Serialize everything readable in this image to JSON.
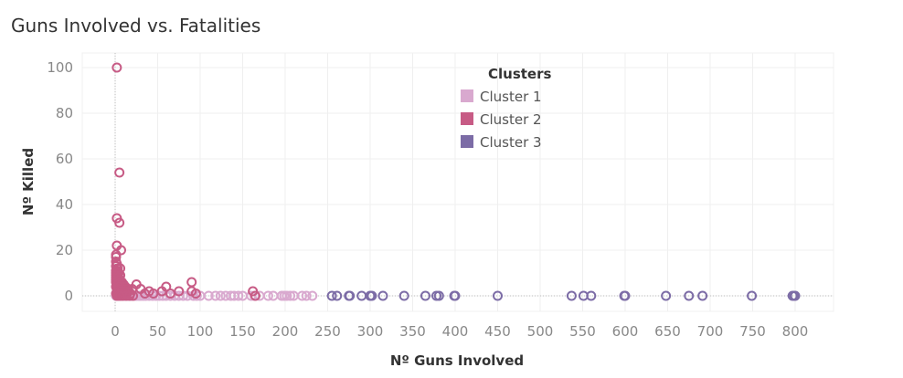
{
  "chart_data": {
    "type": "scatter",
    "title": "Guns Involved vs. Fatalities",
    "xlabel": "Nº Guns Involved",
    "ylabel": "Nº Killed",
    "xlim": [
      -20,
      840
    ],
    "ylim": [
      -7,
      102
    ],
    "x_ticks": [
      0,
      50,
      100,
      150,
      200,
      250,
      300,
      350,
      400,
      450,
      500,
      550,
      600,
      650,
      700,
      750,
      800
    ],
    "y_ticks": [
      0,
      20,
      40,
      60,
      80,
      100
    ],
    "grid": true,
    "legend": {
      "title": "Clusters",
      "position": "top-center"
    },
    "series": [
      {
        "name": "Cluster 1",
        "color": "#d9a9cf",
        "points": [
          [
            1,
            0
          ],
          [
            3,
            0
          ],
          [
            5,
            0
          ],
          [
            8,
            0
          ],
          [
            10,
            0
          ],
          [
            12,
            0
          ],
          [
            15,
            0
          ],
          [
            18,
            0
          ],
          [
            20,
            0
          ],
          [
            22,
            0
          ],
          [
            25,
            0
          ],
          [
            28,
            0
          ],
          [
            30,
            0
          ],
          [
            33,
            0
          ],
          [
            36,
            0
          ],
          [
            40,
            0
          ],
          [
            44,
            0
          ],
          [
            48,
            0
          ],
          [
            52,
            0
          ],
          [
            56,
            0
          ],
          [
            60,
            0
          ],
          [
            65,
            0
          ],
          [
            70,
            0
          ],
          [
            75,
            0
          ],
          [
            80,
            0
          ],
          [
            85,
            0
          ],
          [
            92,
            0
          ],
          [
            96,
            0
          ],
          [
            100,
            0
          ],
          [
            110,
            0
          ],
          [
            118,
            0
          ],
          [
            124,
            0
          ],
          [
            130,
            0
          ],
          [
            136,
            0
          ],
          [
            140,
            0
          ],
          [
            145,
            0
          ],
          [
            150,
            0
          ],
          [
            160,
            0
          ],
          [
            164,
            0
          ],
          [
            170,
            0
          ],
          [
            180,
            0
          ],
          [
            186,
            0
          ],
          [
            196,
            0
          ],
          [
            199,
            0
          ],
          [
            202,
            0
          ],
          [
            206,
            0
          ],
          [
            210,
            0
          ],
          [
            220,
            0
          ],
          [
            225,
            0
          ],
          [
            232,
            0
          ]
        ]
      },
      {
        "name": "Cluster 2",
        "color": "#c75b85",
        "points": [
          [
            2,
            100
          ],
          [
            5,
            54
          ],
          [
            2,
            34
          ],
          [
            5,
            32
          ],
          [
            2,
            22
          ],
          [
            7,
            20
          ],
          [
            1,
            18
          ],
          [
            1,
            17
          ],
          [
            1,
            15
          ],
          [
            2,
            14
          ],
          [
            1,
            13
          ],
          [
            3,
            12
          ],
          [
            6,
            12
          ],
          [
            1,
            11
          ],
          [
            2,
            11
          ],
          [
            1,
            10
          ],
          [
            4,
            10
          ],
          [
            1,
            9
          ],
          [
            3,
            9
          ],
          [
            6,
            9
          ],
          [
            1,
            8
          ],
          [
            2,
            8
          ],
          [
            4,
            8
          ],
          [
            1,
            7
          ],
          [
            3,
            7
          ],
          [
            5,
            7
          ],
          [
            1,
            6
          ],
          [
            2,
            6
          ],
          [
            4,
            6
          ],
          [
            6,
            6
          ],
          [
            8,
            6
          ],
          [
            2,
            5
          ],
          [
            4,
            5
          ],
          [
            7,
            5
          ],
          [
            10,
            5
          ],
          [
            1,
            4
          ],
          [
            3,
            4
          ],
          [
            5,
            4
          ],
          [
            9,
            4
          ],
          [
            12,
            4
          ],
          [
            2,
            3
          ],
          [
            4,
            3
          ],
          [
            6,
            3
          ],
          [
            8,
            3
          ],
          [
            11,
            3
          ],
          [
            15,
            3
          ],
          [
            3,
            2
          ],
          [
            5,
            2
          ],
          [
            7,
            2
          ],
          [
            9,
            2
          ],
          [
            12,
            2
          ],
          [
            16,
            2
          ],
          [
            1,
            1
          ],
          [
            3,
            1
          ],
          [
            6,
            1
          ],
          [
            10,
            1
          ],
          [
            14,
            1
          ],
          [
            18,
            1
          ],
          [
            2,
            0
          ],
          [
            4,
            0
          ],
          [
            6,
            0
          ],
          [
            9,
            0
          ],
          [
            13,
            0
          ],
          [
            17,
            0
          ],
          [
            21,
            0
          ],
          [
            25,
            5
          ],
          [
            30,
            3
          ],
          [
            20,
            3
          ],
          [
            35,
            1
          ],
          [
            40,
            2
          ],
          [
            45,
            1
          ],
          [
            55,
            2
          ],
          [
            60,
            4
          ],
          [
            65,
            1
          ],
          [
            75,
            2
          ],
          [
            90,
            6
          ],
          [
            90,
            2
          ],
          [
            95,
            1
          ],
          [
            162,
            2
          ],
          [
            165,
            0
          ]
        ]
      },
      {
        "name": "Cluster 3",
        "color": "#7c6ca6",
        "points": [
          [
            255,
            0
          ],
          [
            261,
            0
          ],
          [
            275,
            0
          ],
          [
            276,
            0
          ],
          [
            290,
            0
          ],
          [
            300,
            0
          ],
          [
            302,
            0
          ],
          [
            315,
            0
          ],
          [
            340,
            0
          ],
          [
            365,
            0
          ],
          [
            378,
            0
          ],
          [
            381,
            0
          ],
          [
            399,
            0
          ],
          [
            400,
            0
          ],
          [
            450,
            0
          ],
          [
            537,
            0
          ],
          [
            551,
            0
          ],
          [
            560,
            0
          ],
          [
            599,
            0
          ],
          [
            600,
            0
          ],
          [
            648,
            0
          ],
          [
            675,
            0
          ],
          [
            691,
            0
          ],
          [
            749,
            0
          ],
          [
            797,
            0
          ],
          [
            799,
            0
          ],
          [
            800,
            0
          ]
        ]
      }
    ]
  }
}
